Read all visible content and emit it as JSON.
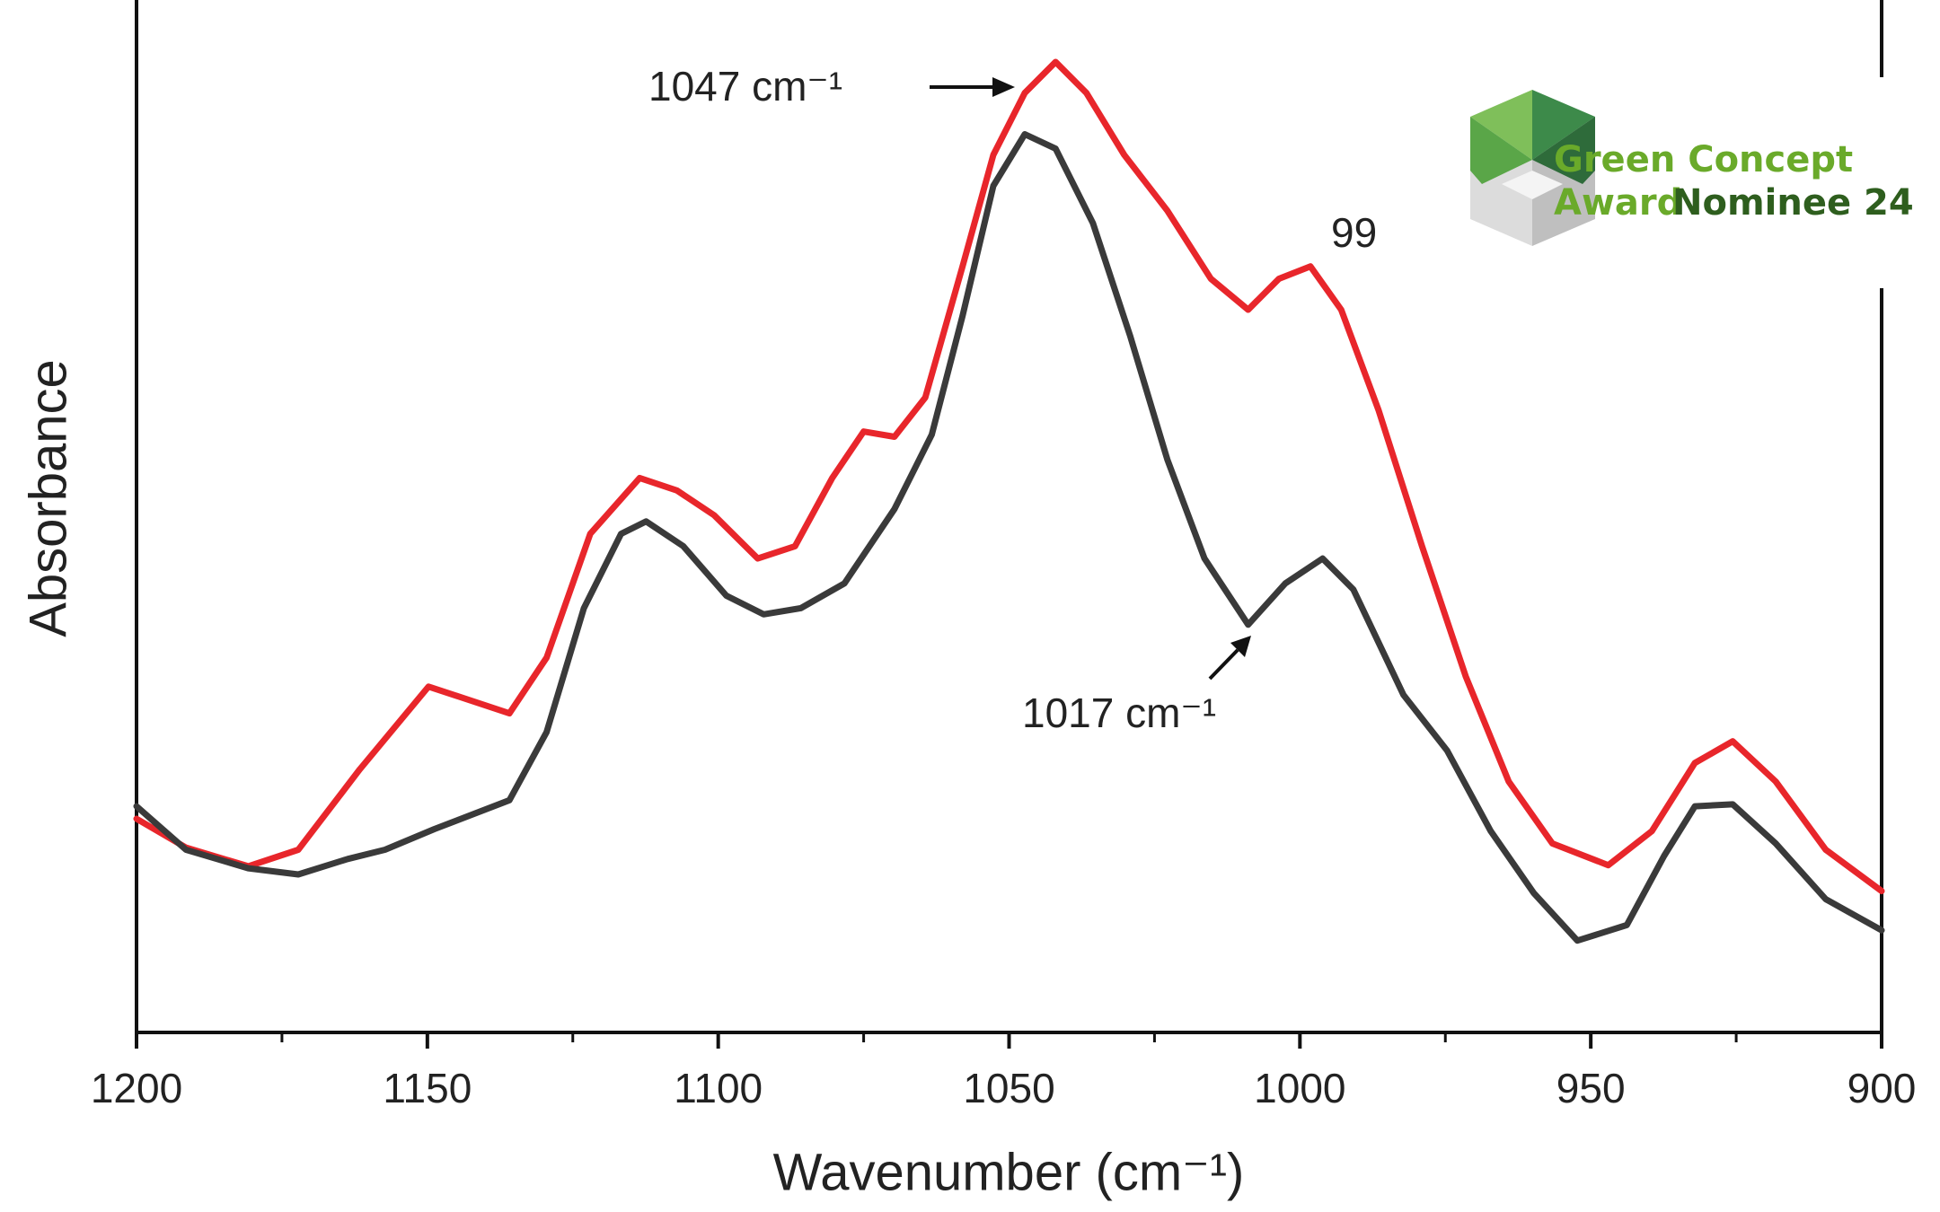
{
  "chart_data": {
    "type": "line",
    "x_label": "Wavenumber (cm⁻¹)",
    "y_label": "Absorbance",
    "xlim": [
      1200,
      900
    ],
    "xticks": [
      1200,
      1150,
      1100,
      1050,
      1000,
      950,
      900
    ],
    "xminorticks": [
      1175,
      1125,
      1075,
      1025,
      975,
      925
    ],
    "ylim": [
      0,
      1
    ],
    "annotations": [
      "1047 cm⁻¹",
      "1017 cm⁻¹",
      "99"
    ],
    "series": [
      {
        "color": "#e8262b",
        "x": [
          1200,
          1191.5,
          1180.8,
          1172.2,
          1161.6,
          1149.8,
          1142.3,
          1135.9,
          1129.5,
          1122,
          1113.5,
          1107.1,
          1100.7,
          1093.2,
          1086.8,
          1080.4,
          1075,
          1069.7,
          1064.4,
          1058,
          1052.7,
          1047.3,
          1042,
          1036.7,
          1030.2,
          1022.8,
          1015.3,
          1008.9,
          1003.6,
          998.2,
          992.9,
          986.5,
          979,
          971.5,
          964.1,
          956.6,
          947,
          939.5,
          932.1,
          925.6,
          918.2,
          909.6,
          900
        ],
        "values": [
          0.207,
          0.179,
          0.161,
          0.177,
          0.255,
          0.335,
          0.321,
          0.309,
          0.363,
          0.483,
          0.537,
          0.525,
          0.501,
          0.459,
          0.471,
          0.537,
          0.582,
          0.577,
          0.615,
          0.742,
          0.85,
          0.91,
          0.94,
          0.91,
          0.85,
          0.796,
          0.73,
          0.7,
          0.73,
          0.742,
          0.7,
          0.603,
          0.471,
          0.345,
          0.243,
          0.183,
          0.162,
          0.195,
          0.261,
          0.282,
          0.243,
          0.177,
          0.137
        ]
      },
      {
        "color": "#3a3a3a",
        "x": [
          1200,
          1191.5,
          1180.8,
          1172.2,
          1163.7,
          1157.3,
          1148.8,
          1135.9,
          1129.5,
          1123.1,
          1116.7,
          1112.4,
          1106,
          1098.6,
          1092.2,
          1085.8,
          1078.3,
          1069.7,
          1063.3,
          1058,
          1052.7,
          1047.3,
          1042,
          1035.6,
          1029.2,
          1022.8,
          1016.4,
          1008.9,
          1002.5,
          996.1,
          990.8,
          982.2,
          974.7,
          967.2,
          959.8,
          952.3,
          943.8,
          937.4,
          932.1,
          925.6,
          918.2,
          909.6,
          900
        ],
        "values": [
          0.219,
          0.177,
          0.159,
          0.153,
          0.168,
          0.177,
          0.197,
          0.225,
          0.291,
          0.411,
          0.483,
          0.495,
          0.471,
          0.423,
          0.405,
          0.411,
          0.435,
          0.507,
          0.579,
          0.694,
          0.82,
          0.87,
          0.856,
          0.784,
          0.675,
          0.555,
          0.459,
          0.395,
          0.435,
          0.459,
          0.429,
          0.327,
          0.273,
          0.195,
          0.135,
          0.089,
          0.104,
          0.171,
          0.219,
          0.221,
          0.183,
          0.129,
          0.099
        ]
      }
    ]
  },
  "badge": {
    "line1": "Green  Concept",
    "line2a": "Award",
    "line2b": "Nominee 24"
  }
}
